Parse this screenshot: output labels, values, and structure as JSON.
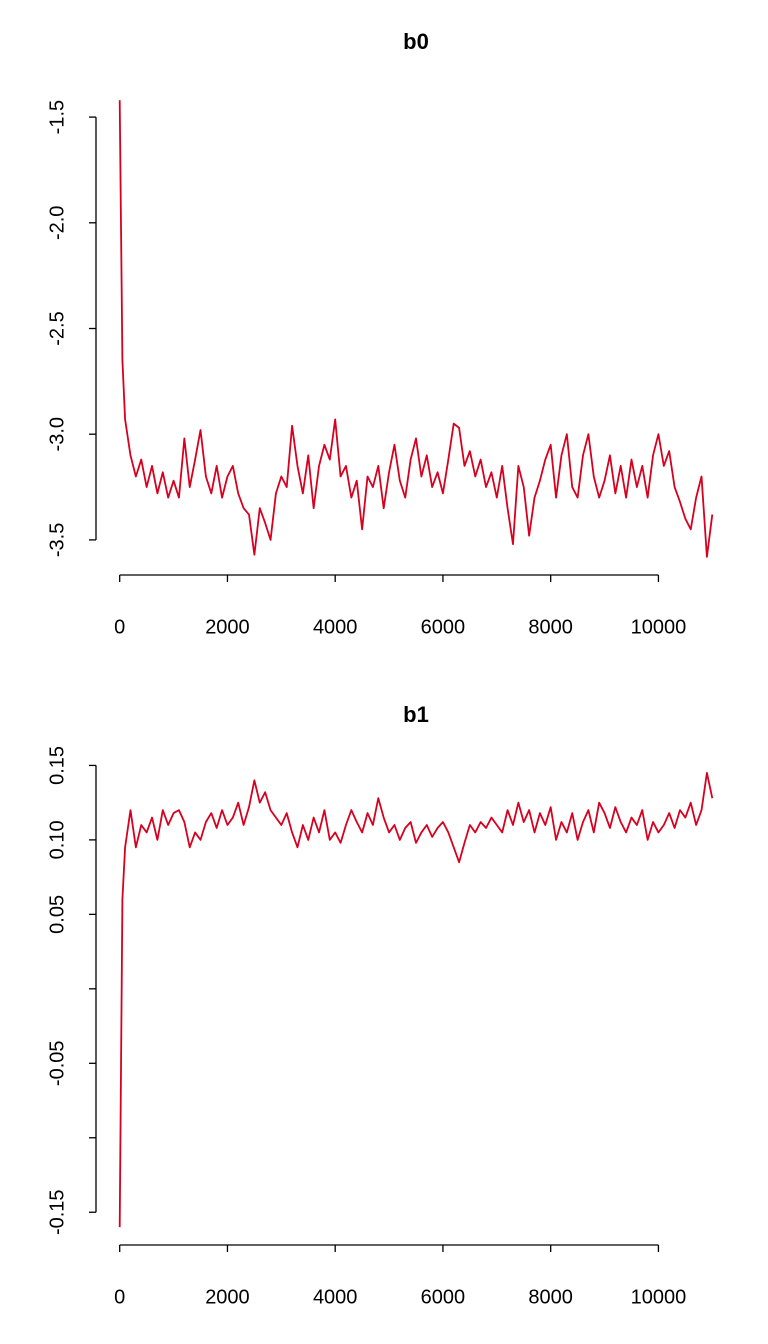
{
  "chart_data": [
    {
      "type": "line",
      "title": "b0",
      "color": "#d7001f",
      "x": [
        0,
        50,
        100,
        200,
        300,
        400,
        500,
        600,
        700,
        800,
        900,
        1000,
        1100,
        1200,
        1300,
        1400,
        1500,
        1600,
        1700,
        1800,
        1900,
        2000,
        2100,
        2200,
        2300,
        2400,
        2500,
        2600,
        2700,
        2800,
        2900,
        3000,
        3100,
        3200,
        3300,
        3400,
        3500,
        3600,
        3700,
        3800,
        3900,
        4000,
        4100,
        4200,
        4300,
        4400,
        4500,
        4600,
        4700,
        4800,
        4900,
        5000,
        5100,
        5200,
        5300,
        5400,
        5500,
        5600,
        5700,
        5800,
        5900,
        6000,
        6100,
        6200,
        6300,
        6400,
        6500,
        6600,
        6700,
        6800,
        6900,
        7000,
        7100,
        7200,
        7300,
        7400,
        7500,
        7600,
        7700,
        7800,
        7900,
        8000,
        8100,
        8200,
        8300,
        8400,
        8500,
        8600,
        8700,
        8800,
        8900,
        9000,
        9100,
        9200,
        9300,
        9400,
        9500,
        9600,
        9700,
        9800,
        9900,
        10000,
        10100,
        10200,
        10300,
        10400,
        10500,
        10600,
        10700,
        10800,
        10900,
        11000
      ],
      "values": [
        -1.42,
        -2.65,
        -2.93,
        -3.1,
        -3.2,
        -3.12,
        -3.25,
        -3.15,
        -3.28,
        -3.18,
        -3.3,
        -3.22,
        -3.3,
        -3.02,
        -3.25,
        -3.12,
        -2.98,
        -3.2,
        -3.28,
        -3.15,
        -3.3,
        -3.2,
        -3.15,
        -3.28,
        -3.35,
        -3.38,
        -3.57,
        -3.35,
        -3.42,
        -3.5,
        -3.28,
        -3.2,
        -3.25,
        -2.96,
        -3.15,
        -3.28,
        -3.1,
        -3.35,
        -3.15,
        -3.05,
        -3.12,
        -2.93,
        -3.2,
        -3.15,
        -3.3,
        -3.22,
        -3.45,
        -3.2,
        -3.25,
        -3.15,
        -3.35,
        -3.18,
        -3.05,
        -3.22,
        -3.3,
        -3.12,
        -3.02,
        -3.2,
        -3.1,
        -3.25,
        -3.18,
        -3.28,
        -3.12,
        -2.95,
        -2.97,
        -3.15,
        -3.08,
        -3.2,
        -3.12,
        -3.25,
        -3.18,
        -3.3,
        -3.15,
        -3.35,
        -3.52,
        -3.15,
        -3.25,
        -3.48,
        -3.3,
        -3.22,
        -3.12,
        -3.05,
        -3.3,
        -3.1,
        -3.0,
        -3.25,
        -3.3,
        -3.1,
        -3.0,
        -3.2,
        -3.3,
        -3.22,
        -3.1,
        -3.28,
        -3.15,
        -3.3,
        -3.12,
        -3.25,
        -3.15,
        -3.3,
        -3.1,
        -3.0,
        -3.15,
        -3.08,
        -3.25,
        -3.32,
        -3.4,
        -3.45,
        -3.3,
        -3.2,
        -3.58,
        -3.38
      ],
      "xlim": [
        -440,
        11440
      ],
      "xticks": [
        0,
        2000,
        4000,
        6000,
        8000,
        10000
      ],
      "ylim": [
        -3.666,
        -1.334
      ],
      "yticks": [
        -1.5,
        {
          "value": -2,
          "label": "-2.0"
        },
        -2.5,
        {
          "value": -3,
          "label": "-3.0"
        },
        -3.5
      ]
    },
    {
      "type": "line",
      "title": "b1",
      "color": "#d7001f",
      "x": [
        0,
        50,
        100,
        200,
        300,
        400,
        500,
        600,
        700,
        800,
        900,
        1000,
        1100,
        1200,
        1300,
        1400,
        1500,
        1600,
        1700,
        1800,
        1900,
        2000,
        2100,
        2200,
        2300,
        2400,
        2500,
        2600,
        2700,
        2800,
        2900,
        3000,
        3100,
        3200,
        3300,
        3400,
        3500,
        3600,
        3700,
        3800,
        3900,
        4000,
        4100,
        4200,
        4300,
        4400,
        4500,
        4600,
        4700,
        4800,
        4900,
        5000,
        5100,
        5200,
        5300,
        5400,
        5500,
        5600,
        5700,
        5800,
        5900,
        6000,
        6100,
        6200,
        6300,
        6400,
        6500,
        6600,
        6700,
        6800,
        6900,
        7000,
        7100,
        7200,
        7300,
        7400,
        7500,
        7600,
        7700,
        7800,
        7900,
        8000,
        8100,
        8200,
        8300,
        8400,
        8500,
        8600,
        8700,
        8800,
        8900,
        9000,
        9100,
        9200,
        9300,
        9400,
        9500,
        9600,
        9700,
        9800,
        9900,
        10000,
        10100,
        10200,
        10300,
        10400,
        10500,
        10600,
        10700,
        10800,
        10900,
        11000
      ],
      "values": [
        -0.16,
        0.06,
        0.095,
        0.12,
        0.095,
        0.11,
        0.105,
        0.115,
        0.1,
        0.12,
        0.11,
        0.118,
        0.12,
        0.112,
        0.095,
        0.105,
        0.1,
        0.112,
        0.118,
        0.108,
        0.12,
        0.11,
        0.115,
        0.125,
        0.11,
        0.122,
        0.14,
        0.125,
        0.132,
        0.12,
        0.115,
        0.11,
        0.118,
        0.105,
        0.095,
        0.11,
        0.1,
        0.115,
        0.105,
        0.12,
        0.1,
        0.105,
        0.098,
        0.11,
        0.12,
        0.112,
        0.105,
        0.118,
        0.11,
        0.128,
        0.115,
        0.105,
        0.11,
        0.1,
        0.108,
        0.112,
        0.098,
        0.105,
        0.11,
        0.102,
        0.108,
        0.112,
        0.105,
        0.095,
        0.085,
        0.098,
        0.11,
        0.105,
        0.112,
        0.108,
        0.115,
        0.11,
        0.105,
        0.12,
        0.11,
        0.125,
        0.112,
        0.12,
        0.105,
        0.118,
        0.11,
        0.122,
        0.1,
        0.112,
        0.105,
        0.118,
        0.1,
        0.112,
        0.12,
        0.105,
        0.125,
        0.118,
        0.108,
        0.122,
        0.112,
        0.105,
        0.115,
        0.11,
        0.12,
        0.1,
        0.112,
        0.105,
        0.11,
        0.118,
        0.108,
        0.12,
        0.115,
        0.125,
        0.11,
        0.12,
        0.145,
        0.128
      ],
      "xlim": [
        -440,
        11440
      ],
      "xticks": [
        0,
        2000,
        4000,
        6000,
        8000,
        10000
      ],
      "ylim": [
        -0.172,
        0.157
      ],
      "yticks": [
        0.15,
        {
          "value": 0.1,
          "label": "0.10"
        },
        0.05,
        {
          "value": 0,
          "label": null
        },
        -0.05,
        {
          "value": -0.1,
          "label": null
        },
        -0.15
      ]
    }
  ]
}
